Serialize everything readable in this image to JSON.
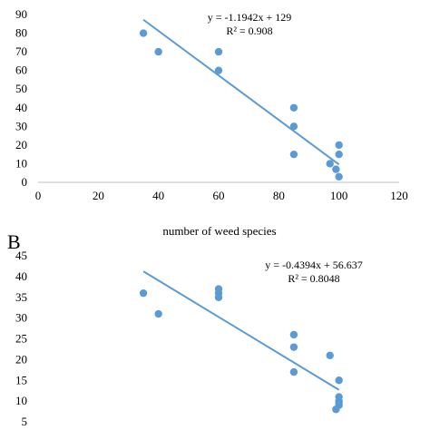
{
  "colors": {
    "marker": "#5b9bd5",
    "trendline": "#5b9bd5",
    "axis": "#bfbfbf",
    "text": "#000000"
  },
  "chart_data": [
    {
      "type": "scatter",
      "panel_label": "",
      "title": "",
      "xlabel": "number of weed species",
      "ylabel": "",
      "xlim": [
        0,
        120
      ],
      "ylim": [
        0,
        90
      ],
      "x_ticks": [
        "0",
        "20",
        "40",
        "60",
        "80",
        "100",
        "120"
      ],
      "y_ticks": [
        "0",
        "10",
        "20",
        "30",
        "40",
        "50",
        "60",
        "70",
        "80",
        "90"
      ],
      "grid": false,
      "series": [
        {
          "x": [
            35,
            40,
            60,
            60,
            85,
            85,
            85,
            97,
            99,
            100,
            100,
            100
          ],
          "y": [
            80,
            70,
            70,
            60,
            40,
            30,
            15,
            10,
            7,
            20,
            15,
            3
          ]
        }
      ],
      "trendline": {
        "slope": -1.1942,
        "intercept": 129,
        "x_range": [
          35,
          100
        ]
      },
      "annotations": [
        "y = -1.1942x + 129",
        "R² = 0.908"
      ]
    },
    {
      "type": "scatter",
      "panel_label": "B",
      "title": "",
      "xlabel": "",
      "ylabel": "",
      "xlim": [
        0,
        120
      ],
      "ylim": [
        5,
        45
      ],
      "y_ticks": [
        "5",
        "10",
        "15",
        "20",
        "25",
        "30",
        "35",
        "40",
        "45"
      ],
      "grid": false,
      "series": [
        {
          "x": [
            35,
            40,
            60,
            60,
            60,
            85,
            85,
            85,
            97,
            99,
            100,
            100,
            100,
            100,
            100
          ],
          "y": [
            36,
            31,
            37,
            36,
            35,
            26,
            23,
            17,
            21,
            8,
            15,
            11,
            10,
            9.5,
            9
          ]
        }
      ],
      "trendline": {
        "slope": -0.4394,
        "intercept": 56.637,
        "x_range": [
          35,
          100
        ]
      },
      "annotations": [
        "y = -0.4394x + 56.637",
        "R² = 0.8048"
      ]
    }
  ]
}
